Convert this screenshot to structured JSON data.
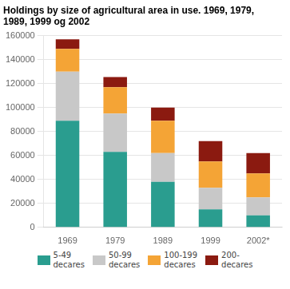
{
  "chart_data": {
    "type": "bar",
    "title": "Holdings by size of agricultural area in use. 1969, 1979,\n1989, 1999 og 2002",
    "categories": [
      "1969",
      "1979",
      "1989",
      "1999",
      "2002*"
    ],
    "series": [
      {
        "name": "5-49\ndecares",
        "color": "#2a9d8f",
        "values": [
          89000,
          63000,
          38000,
          15000,
          10000
        ]
      },
      {
        "name": "50-99\ndecares",
        "color": "#c8c8c8",
        "values": [
          41000,
          32000,
          24000,
          18000,
          15000
        ]
      },
      {
        "name": "100-199\ndecares",
        "color": "#f4a436",
        "values": [
          19000,
          22000,
          27000,
          22000,
          20000
        ]
      },
      {
        "name": "200-\ndecares",
        "color": "#8b1a10",
        "values": [
          8000,
          8500,
          11000,
          17000,
          17000
        ]
      }
    ],
    "ylim": [
      0,
      160000
    ],
    "yticks": [
      0,
      20000,
      40000,
      60000,
      80000,
      100000,
      120000,
      140000,
      160000
    ],
    "stacked": true,
    "grid": true,
    "legend": "bottom"
  }
}
